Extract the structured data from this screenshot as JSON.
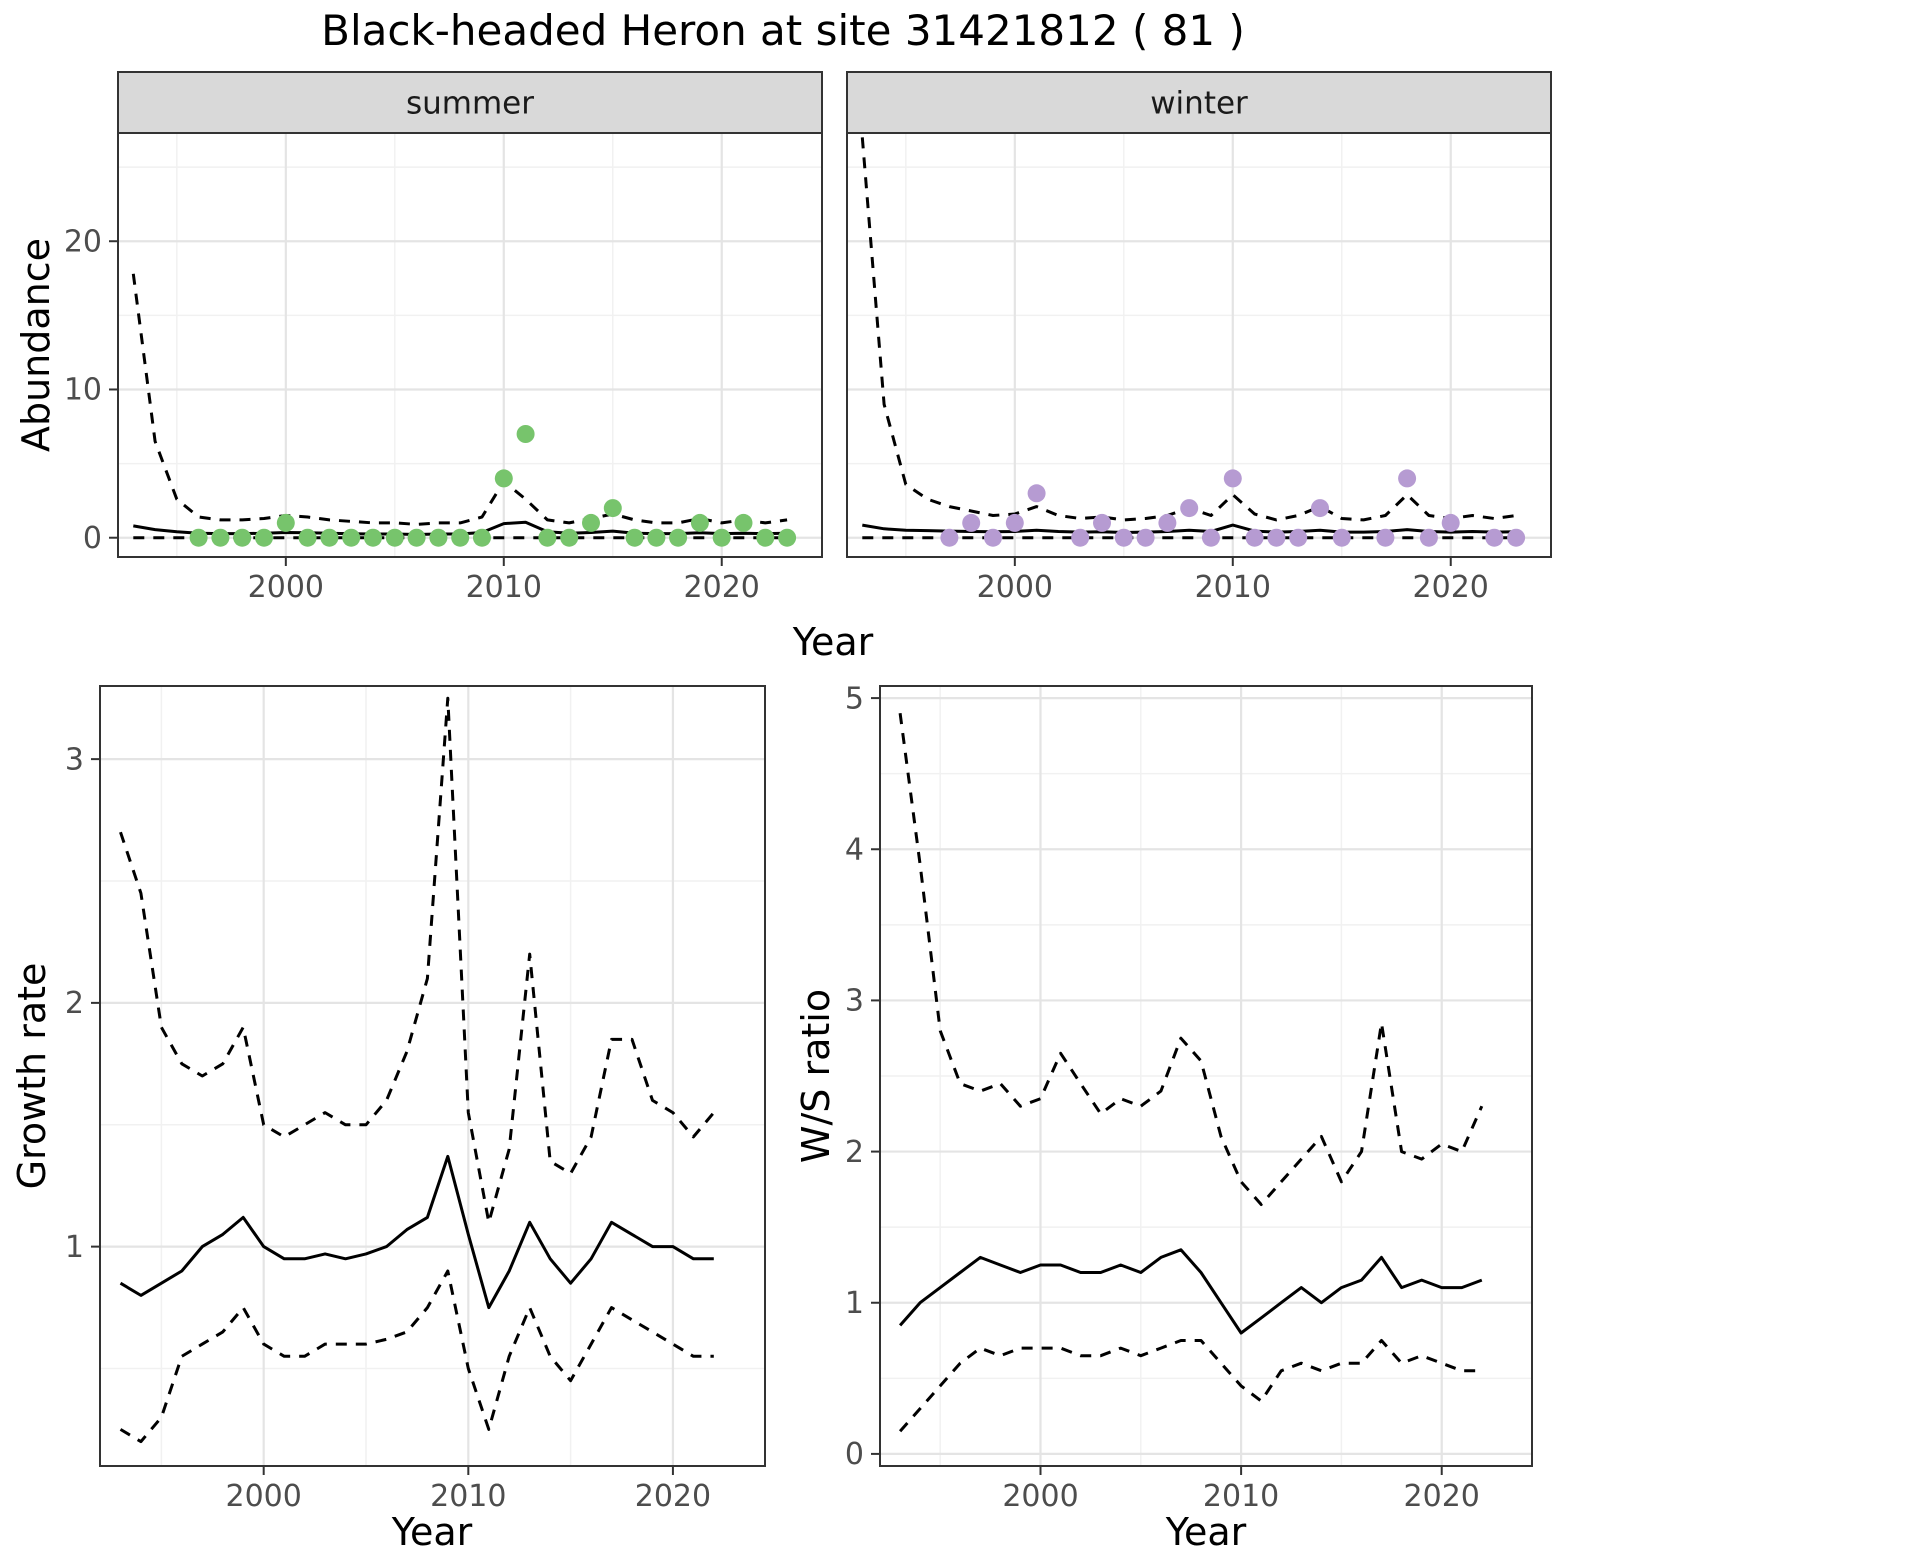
{
  "title": "Black-headed Heron at site 31421812 ( 81 )",
  "labels": {
    "abundance": "Abundance",
    "growth_rate": "Growth rate",
    "ws_ratio": "W/S ratio",
    "year": "Year"
  },
  "style": {
    "summer_point_color": "#77c46c",
    "winter_point_color": "#b69bd2",
    "line_color": "#000000",
    "strip_bg": "#d9d9d9",
    "strip_text_color": "#1a1a1a",
    "panel_border": "#333333",
    "grid_major": "#e4e4e4",
    "grid_minor": "#f1f1f1",
    "tick_text_color": "#4d4d4d",
    "panel_bg": "#ffffff"
  },
  "chart_data": [
    {
      "id": "abundance-summer",
      "type": "line",
      "facet": "summer",
      "xlabel": "Year",
      "ylabel": "Abundance",
      "xlim": [
        1992.3,
        2024.6
      ],
      "ylim": [
        -1.3,
        27.3
      ],
      "xticks": [
        2000,
        2010,
        2020
      ],
      "xminor": [
        1995,
        2005,
        2015
      ],
      "yticks": [
        0,
        10,
        20
      ],
      "yminor": [
        5,
        15,
        25
      ],
      "x": [
        1993,
        1994,
        1995,
        1996,
        1997,
        1998,
        1999,
        2000,
        2001,
        2002,
        2003,
        2004,
        2005,
        2006,
        2007,
        2008,
        2009,
        2010,
        2011,
        2012,
        2013,
        2014,
        2015,
        2016,
        2017,
        2018,
        2019,
        2020,
        2021,
        2022,
        2023
      ],
      "series": [
        {
          "name": "upper-ci",
          "style": "dashed",
          "values": [
            17.8,
            6.5,
            2.6,
            1.4,
            1.2,
            1.2,
            1.3,
            1.5,
            1.4,
            1.2,
            1.1,
            1.0,
            1.0,
            0.9,
            1.0,
            1.0,
            1.4,
            3.8,
            2.6,
            1.2,
            1.0,
            1.3,
            1.6,
            1.2,
            1.0,
            1.0,
            1.3,
            1.0,
            1.2,
            1.0,
            1.2
          ]
        },
        {
          "name": "median",
          "style": "solid",
          "values": [
            0.8,
            0.55,
            0.4,
            0.3,
            0.28,
            0.28,
            0.3,
            0.35,
            0.33,
            0.3,
            0.27,
            0.25,
            0.25,
            0.22,
            0.25,
            0.25,
            0.35,
            0.95,
            1.05,
            0.4,
            0.3,
            0.35,
            0.45,
            0.3,
            0.28,
            0.28,
            0.33,
            0.28,
            0.3,
            0.28,
            0.3
          ]
        },
        {
          "name": "lower-ci",
          "style": "dashed",
          "values": [
            0,
            0,
            0,
            0,
            0,
            0,
            0,
            0,
            0,
            0,
            0,
            0,
            0,
            0,
            0,
            0,
            0,
            0,
            0,
            0,
            0,
            0,
            0,
            0,
            0,
            0,
            0,
            0,
            0,
            0,
            0
          ]
        }
      ],
      "points": {
        "name": "observed-count",
        "color": "#77c46c",
        "x": [
          1996,
          1997,
          1998,
          1999,
          2000,
          2001,
          2002,
          2003,
          2004,
          2005,
          2006,
          2007,
          2008,
          2009,
          2010,
          2011,
          2012,
          2013,
          2014,
          2015,
          2016,
          2017,
          2018,
          2019,
          2020,
          2021,
          2022,
          2023
        ],
        "y": [
          0,
          0,
          0,
          0,
          1,
          0,
          0,
          0,
          0,
          0,
          0,
          0,
          0,
          0,
          4,
          7,
          0,
          0,
          1,
          2,
          0,
          0,
          0,
          1,
          0,
          1,
          0,
          0
        ]
      }
    },
    {
      "id": "abundance-winter",
      "type": "line",
      "facet": "winter",
      "xlabel": "Year",
      "ylabel": "Abundance",
      "xlim": [
        1992.3,
        2024.6
      ],
      "ylim": [
        -1.3,
        27.3
      ],
      "xticks": [
        2000,
        2010,
        2020
      ],
      "xminor": [
        1995,
        2005,
        2015
      ],
      "yticks": [
        0,
        10,
        20
      ],
      "yminor": [
        5,
        15,
        25
      ],
      "x": [
        1993,
        1994,
        1995,
        1996,
        1997,
        1998,
        1999,
        2000,
        2001,
        2002,
        2003,
        2004,
        2005,
        2006,
        2007,
        2008,
        2009,
        2010,
        2011,
        2012,
        2013,
        2014,
        2015,
        2016,
        2017,
        2018,
        2019,
        2020,
        2021,
        2022,
        2023
      ],
      "series": [
        {
          "name": "upper-ci",
          "style": "dashed",
          "values": [
            27.0,
            9.0,
            3.6,
            2.6,
            2.1,
            1.8,
            1.5,
            1.6,
            2.1,
            1.5,
            1.3,
            1.4,
            1.2,
            1.3,
            1.5,
            2.0,
            1.5,
            2.9,
            1.6,
            1.2,
            1.5,
            2.1,
            1.3,
            1.2,
            1.5,
            2.9,
            1.5,
            1.3,
            1.5,
            1.3,
            1.5
          ]
        },
        {
          "name": "median",
          "style": "solid",
          "values": [
            0.85,
            0.6,
            0.5,
            0.48,
            0.45,
            0.42,
            0.4,
            0.42,
            0.5,
            0.42,
            0.38,
            0.4,
            0.35,
            0.38,
            0.42,
            0.5,
            0.42,
            0.85,
            0.45,
            0.38,
            0.42,
            0.5,
            0.38,
            0.38,
            0.42,
            0.55,
            0.42,
            0.38,
            0.42,
            0.38,
            0.4
          ]
        },
        {
          "name": "lower-ci",
          "style": "dashed",
          "values": [
            0,
            0,
            0,
            0,
            0,
            0,
            0,
            0,
            0,
            0,
            0,
            0,
            0,
            0,
            0,
            0,
            0,
            0,
            0,
            0,
            0,
            0,
            0,
            0,
            0,
            0,
            0,
            0,
            0,
            0,
            0
          ]
        }
      ],
      "points": {
        "name": "observed-count",
        "color": "#b69bd2",
        "x": [
          1997,
          1998,
          1999,
          2000,
          2001,
          2003,
          2004,
          2005,
          2006,
          2007,
          2008,
          2009,
          2010,
          2011,
          2012,
          2013,
          2014,
          2015,
          2017,
          2018,
          2019,
          2020,
          2022,
          2023
        ],
        "y": [
          0,
          1,
          0,
          1,
          3,
          0,
          1,
          0,
          0,
          1,
          2,
          0,
          4,
          0,
          0,
          0,
          2,
          0,
          0,
          4,
          0,
          1,
          0,
          0
        ]
      }
    },
    {
      "id": "growth-rate",
      "type": "line",
      "facet": null,
      "xlabel": "Year",
      "ylabel": "Growth rate",
      "xlim": [
        1992.0,
        2024.5
      ],
      "ylim": [
        0.1,
        3.3
      ],
      "xticks": [
        2000,
        2010,
        2020
      ],
      "xminor": [
        1995,
        2005,
        2015
      ],
      "yticks": [
        1,
        2,
        3
      ],
      "yminor": [
        0.5,
        1.5,
        2.5
      ],
      "x": [
        1993,
        1994,
        1995,
        1996,
        1997,
        1998,
        1999,
        2000,
        2001,
        2002,
        2003,
        2004,
        2005,
        2006,
        2007,
        2008,
        2009,
        2010,
        2011,
        2012,
        2013,
        2014,
        2015,
        2016,
        2017,
        2018,
        2019,
        2020,
        2021,
        2022
      ],
      "series": [
        {
          "name": "upper-ci",
          "style": "dashed",
          "values": [
            2.7,
            2.45,
            1.9,
            1.75,
            1.7,
            1.75,
            1.9,
            1.5,
            1.45,
            1.5,
            1.55,
            1.5,
            1.5,
            1.6,
            1.8,
            2.1,
            3.25,
            1.55,
            1.1,
            1.4,
            2.2,
            1.35,
            1.3,
            1.45,
            1.85,
            1.85,
            1.6,
            1.55,
            1.45,
            1.55
          ]
        },
        {
          "name": "median",
          "style": "solid",
          "values": [
            0.85,
            0.8,
            0.85,
            0.9,
            1.0,
            1.05,
            1.12,
            1.0,
            0.95,
            0.95,
            0.97,
            0.95,
            0.97,
            1.0,
            1.07,
            1.12,
            1.37,
            1.05,
            0.75,
            0.9,
            1.1,
            0.95,
            0.85,
            0.95,
            1.1,
            1.05,
            1.0,
            1.0,
            0.95,
            0.95
          ]
        },
        {
          "name": "lower-ci",
          "style": "dashed",
          "values": [
            0.25,
            0.2,
            0.3,
            0.55,
            0.6,
            0.65,
            0.75,
            0.6,
            0.55,
            0.55,
            0.6,
            0.6,
            0.6,
            0.62,
            0.65,
            0.75,
            0.9,
            0.5,
            0.25,
            0.55,
            0.75,
            0.55,
            0.45,
            0.6,
            0.75,
            0.7,
            0.65,
            0.6,
            0.55,
            0.55
          ]
        }
      ],
      "points": null
    },
    {
      "id": "ws-ratio",
      "type": "line",
      "facet": null,
      "xlabel": "Year",
      "ylabel": "W/S ratio",
      "xlim": [
        1992.0,
        2024.5
      ],
      "ylim": [
        -0.08,
        5.08
      ],
      "xticks": [
        2000,
        2010,
        2020
      ],
      "xminor": [
        1995,
        2005,
        2015
      ],
      "yticks": [
        0,
        1,
        2,
        3,
        4,
        5
      ],
      "yminor": [
        0.5,
        1.5,
        2.5,
        3.5,
        4.5
      ],
      "x": [
        1993,
        1994,
        1995,
        1996,
        1997,
        1998,
        1999,
        2000,
        2001,
        2002,
        2003,
        2004,
        2005,
        2006,
        2007,
        2008,
        2009,
        2010,
        2011,
        2012,
        2013,
        2014,
        2015,
        2016,
        2017,
        2018,
        2019,
        2020,
        2021,
        2022
      ],
      "series": [
        {
          "name": "upper-ci",
          "style": "dashed",
          "values": [
            4.9,
            3.9,
            2.8,
            2.45,
            2.4,
            2.45,
            2.3,
            2.35,
            2.65,
            2.45,
            2.25,
            2.35,
            2.3,
            2.4,
            2.75,
            2.6,
            2.1,
            1.8,
            1.65,
            1.8,
            1.95,
            2.1,
            1.8,
            2.0,
            2.85,
            2.0,
            1.95,
            2.05,
            2.0,
            2.3
          ]
        },
        {
          "name": "median",
          "style": "solid",
          "values": [
            0.85,
            1.0,
            1.1,
            1.2,
            1.3,
            1.25,
            1.2,
            1.25,
            1.25,
            1.2,
            1.2,
            1.25,
            1.2,
            1.3,
            1.35,
            1.2,
            1.0,
            0.8,
            0.9,
            1.0,
            1.1,
            1.0,
            1.1,
            1.15,
            1.3,
            1.1,
            1.15,
            1.1,
            1.1,
            1.15
          ]
        },
        {
          "name": "lower-ci",
          "style": "dashed",
          "values": [
            0.15,
            0.3,
            0.45,
            0.6,
            0.7,
            0.65,
            0.7,
            0.7,
            0.7,
            0.65,
            0.65,
            0.7,
            0.65,
            0.7,
            0.75,
            0.75,
            0.6,
            0.45,
            0.35,
            0.55,
            0.6,
            0.55,
            0.6,
            0.6,
            0.75,
            0.6,
            0.65,
            0.6,
            0.55,
            0.55
          ]
        }
      ],
      "points": null
    }
  ]
}
